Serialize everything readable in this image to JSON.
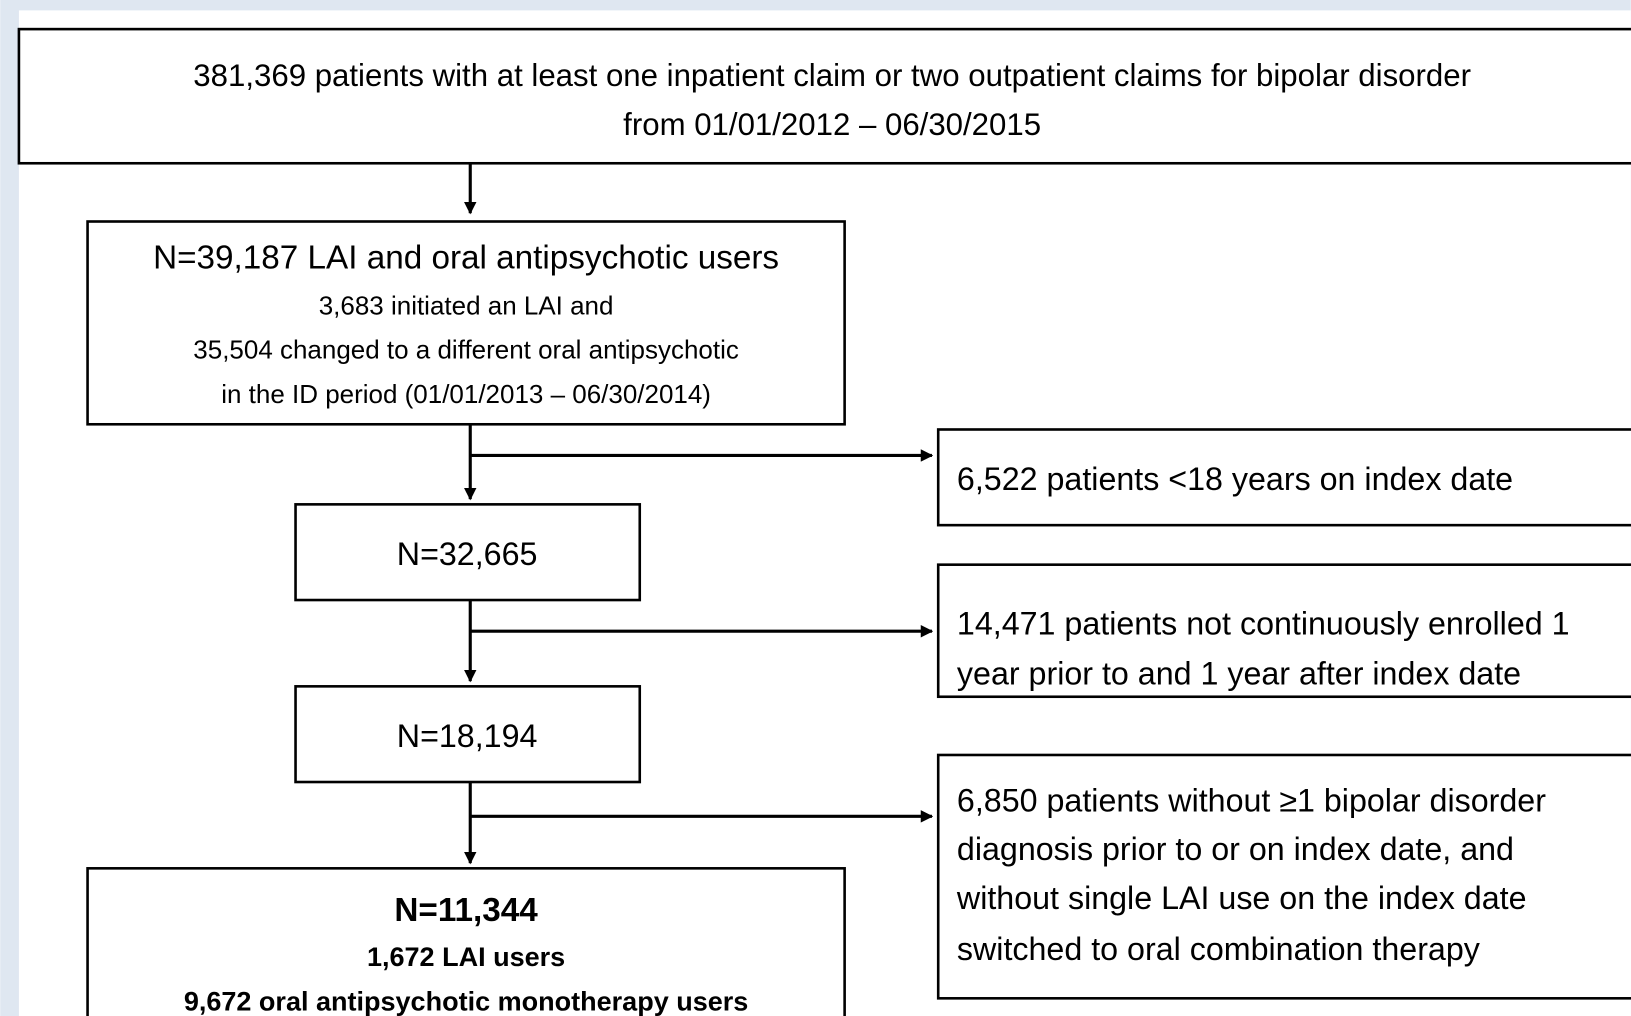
{
  "nodes": [
    {
      "lines": [
        "381,369 patients with at least one inpatient claim or two outpatient claims for bipolar disorder",
        "from 01/01/2012 – 06/30/2015"
      ]
    },
    {
      "lines": [
        "N=39,187 LAI and oral antipsychotic users",
        "3,683 initiated an LAI and",
        "35,504 changed to a different oral antipsychotic",
        "in the ID period (01/01/2013 – 06/30/2014)"
      ]
    },
    {
      "lines": [
        "N=32,665"
      ]
    },
    {
      "lines": [
        "N=18,194"
      ]
    },
    {
      "lines": [
        "N=11,344",
        "1,672 LAI users",
        "9,672 oral antipsychotic monotherapy users"
      ]
    }
  ],
  "exclusions": [
    {
      "lines": [
        "6,522 patients <18 years on index date"
      ]
    },
    {
      "lines": [
        "14,471 patients not continuously enrolled 1",
        "year prior to and 1 year after index date"
      ]
    },
    {
      "lines": [
        "6,850 patients without ≥1 bipolar disorder",
        "diagnosis prior to or on index date, and",
        "without single LAI use on the index date",
        "switched to oral combination therapy"
      ]
    }
  ]
}
